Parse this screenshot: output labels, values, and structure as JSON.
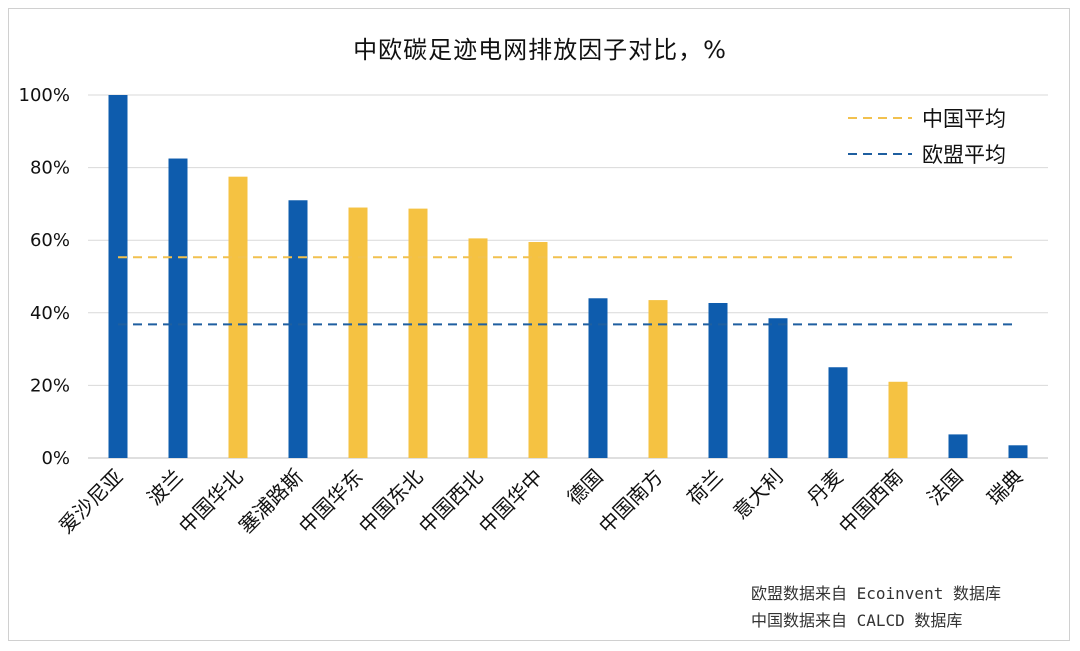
{
  "chart_data": {
    "type": "bar",
    "title": "中欧碳足迹电网排放因子对比，%",
    "categories": [
      "爱沙尼亚",
      "波兰",
      "中国华北",
      "塞浦路斯",
      "中国华东",
      "中国东北",
      "中国西北",
      "中国华中",
      "德国",
      "中国南方",
      "荷兰",
      "意大利",
      "丹麦",
      "中国西南",
      "法国",
      "瑞典"
    ],
    "values": [
      100,
      82.5,
      77.5,
      71,
      69,
      68.7,
      60.5,
      59.5,
      44,
      43.5,
      42.7,
      38.5,
      25,
      21,
      6.5,
      3.5
    ],
    "group": [
      "eu",
      "eu",
      "cn",
      "eu",
      "cn",
      "cn",
      "cn",
      "cn",
      "eu",
      "cn",
      "eu",
      "eu",
      "eu",
      "cn",
      "eu",
      "eu"
    ],
    "ylim": [
      0,
      100
    ],
    "yticks": [
      0,
      20,
      40,
      60,
      80,
      100
    ],
    "ytick_labels": [
      "0%",
      "20%",
      "40%",
      "60%",
      "80%",
      "100%"
    ],
    "grid": true,
    "legend_position": "top-right",
    "reference_lines": [
      {
        "name": "中国平均",
        "value": 55.3,
        "color": "#F2C14E",
        "style": "dashed"
      },
      {
        "name": "欧盟平均",
        "value": 36.8,
        "color": "#1F5FA0",
        "style": "dashed"
      }
    ],
    "colors": {
      "eu": "#0E5CAD",
      "cn": "#F5C242"
    },
    "source_notes": [
      "欧盟数据来自 Ecoinvent 数据库",
      "中国数据来自 CALCD 数据库"
    ]
  }
}
